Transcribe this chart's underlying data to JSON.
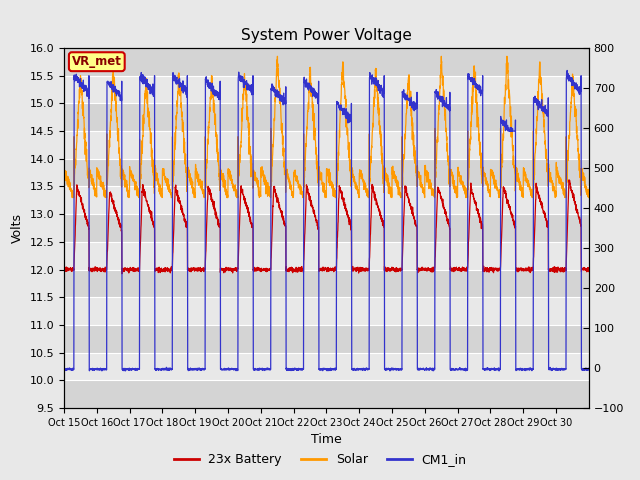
{
  "title": "System Power Voltage",
  "xlabel": "Time",
  "ylabel_left": "Volts",
  "ylim_left": [
    9.5,
    16.0
  ],
  "ylim_right": [
    -100,
    800
  ],
  "yticks_left": [
    9.5,
    10.0,
    10.5,
    11.0,
    11.5,
    12.0,
    12.5,
    13.0,
    13.5,
    14.0,
    14.5,
    15.0,
    15.5,
    16.0
  ],
  "yticks_right": [
    -100,
    0,
    100,
    200,
    300,
    400,
    500,
    600,
    700,
    800
  ],
  "xtick_labels": [
    "Oct 15",
    "Oct 16",
    "Oct 17",
    "Oct 18",
    "Oct 19",
    "Oct 20",
    "Oct 21",
    "Oct 22",
    "Oct 23",
    "Oct 24",
    "Oct 25",
    "Oct 26",
    "Oct 27",
    "Oct 28",
    "Oct 29",
    "Oct 30"
  ],
  "legend_labels": [
    "23x Battery",
    "Solar",
    "CM1_in"
  ],
  "legend_colors": [
    "#cc0000",
    "#ff9900",
    "#3333cc"
  ],
  "battery_color": "#cc0000",
  "solar_color": "#ff9900",
  "cm1_color": "#3333cc",
  "vr_met_fill": "#ffff88",
  "vr_met_edge": "#cc0000",
  "bg_color": "#e8e8e8",
  "band_light": "#e8e8e8",
  "band_dark": "#d4d4d4",
  "n_days": 16,
  "ppd": 200,
  "fig_width": 6.4,
  "fig_height": 4.8,
  "dpi": 100
}
